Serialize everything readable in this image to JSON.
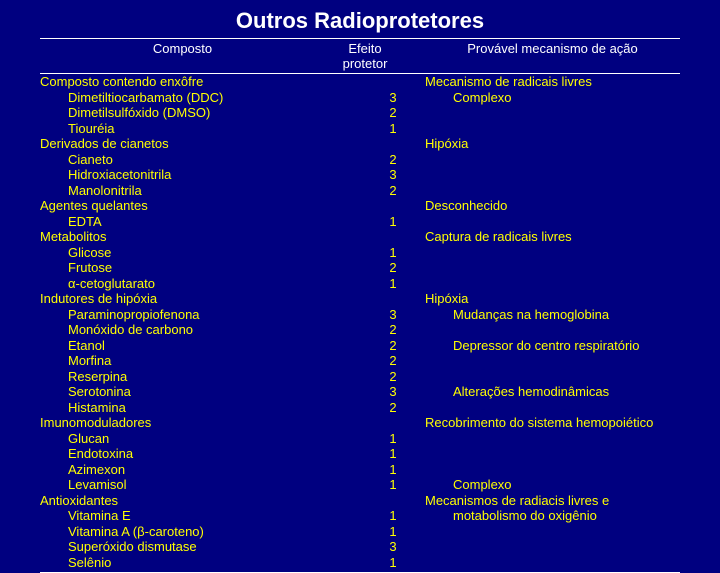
{
  "title": "Outros Radioprotetores",
  "headers": {
    "composto": "Composto",
    "efeito_line1": "Efeito",
    "efeito_line2": "protetor",
    "mecanismo": "Provável mecanismo de ação"
  },
  "groups": [
    {
      "category": "Composto contendo enxôfre",
      "mechanism": "Mecanismo de radicais livres",
      "items": [
        {
          "name": "Dimetiltiocarbamato (DDC)",
          "effect": "3",
          "mech": "Complexo"
        },
        {
          "name": "Dimetilsulfóxido (DMSO)",
          "effect": "2",
          "mech": ""
        },
        {
          "name": "Tiouréia",
          "effect": "1",
          "mech": ""
        }
      ]
    },
    {
      "category": "Derivados de cianetos",
      "mechanism": "Hipóxia",
      "items": [
        {
          "name": "Cianeto",
          "effect": "2",
          "mech": ""
        },
        {
          "name": "Hidroxiacetonitrila",
          "effect": "3",
          "mech": ""
        },
        {
          "name": "Manolonitrila",
          "effect": "2",
          "mech": ""
        }
      ]
    },
    {
      "category": "Agentes quelantes",
      "mechanism": "Desconhecido",
      "items": [
        {
          "name": "EDTA",
          "effect": "1",
          "mech": ""
        }
      ]
    },
    {
      "category": "Metabolitos",
      "mechanism": "Captura de radicais livres",
      "items": [
        {
          "name": "Glicose",
          "effect": "1",
          "mech": ""
        },
        {
          "name": "Frutose",
          "effect": "2",
          "mech": ""
        },
        {
          "name": "α-cetoglutarato",
          "effect": "1",
          "mech": ""
        }
      ]
    },
    {
      "category": "Indutores de hipóxia",
      "mechanism": "Hipóxia",
      "items": [
        {
          "name": "Paraminopropiofenona",
          "effect": "3",
          "mech": "Mudanças na hemoglobina"
        },
        {
          "name": "Monóxido de carbono",
          "effect": "2",
          "mech": ""
        },
        {
          "name": "Etanol",
          "effect": "2",
          "mech": "Depressor do centro respiratório"
        },
        {
          "name": "Morfina",
          "effect": "2",
          "mech": ""
        },
        {
          "name": "Reserpina",
          "effect": "2",
          "mech": ""
        },
        {
          "name": "Serotonina",
          "effect": "3",
          "mech": "Alterações hemodinâmicas"
        },
        {
          "name": "Histamina",
          "effect": "2",
          "mech": ""
        }
      ]
    },
    {
      "category": "Imunomoduladores",
      "mechanism": "Recobrimento do sistema hemopoiético",
      "items": [
        {
          "name": "Glucan",
          "effect": "1",
          "mech": ""
        },
        {
          "name": "Endotoxina",
          "effect": "1",
          "mech": ""
        },
        {
          "name": "Azimexon",
          "effect": "1",
          "mech": ""
        },
        {
          "name": "Levamisol",
          "effect": "1",
          "mech": "Complexo"
        }
      ]
    },
    {
      "category": "Antioxidantes",
      "mechanism": "Mecanismos de radiacis livres e",
      "items": [
        {
          "name": "Vitamina E",
          "effect": "1",
          "mech": "motabolismo do oxigênio"
        },
        {
          "name": "Vitamina A (β-caroteno)",
          "effect": "1",
          "mech": ""
        },
        {
          "name": "Superóxido dismutase",
          "effect": "3",
          "mech": ""
        },
        {
          "name": "Selênio",
          "effect": "1",
          "mech": ""
        }
      ]
    }
  ]
}
